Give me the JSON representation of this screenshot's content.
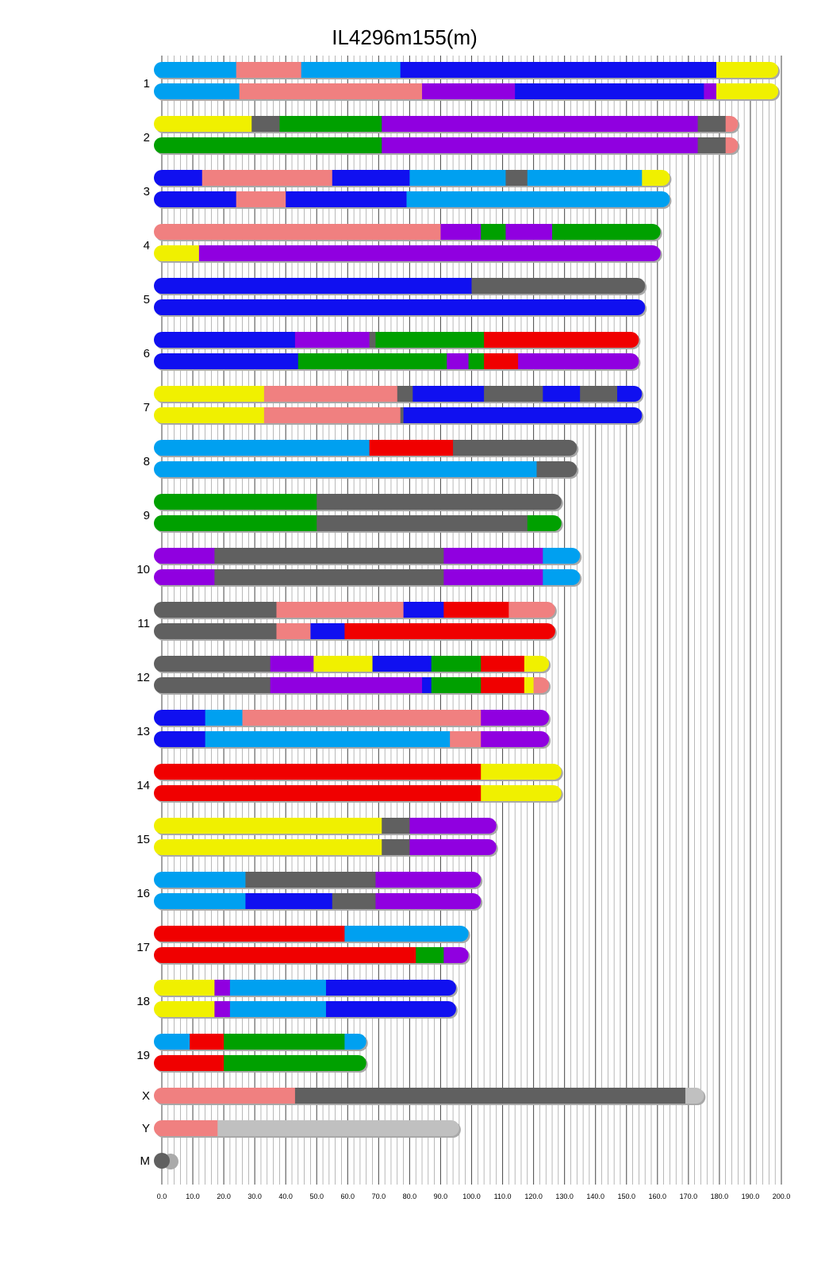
{
  "chart_data": {
    "type": "chromosome-ideogram",
    "title": "IL4296m155(m)",
    "xlim": [
      0,
      200
    ],
    "x_ticks": [
      "0.0",
      "10.0",
      "20.0",
      "30.0",
      "40.0",
      "50.0",
      "60.0",
      "70.0",
      "80.0",
      "90.0",
      "100.0",
      "110.0",
      "120.0",
      "130.0",
      "140.0",
      "150.0",
      "160.0",
      "170.0",
      "180.0",
      "190.0",
      "200.0"
    ],
    "palette": {
      "skyblue": "#00a0f0",
      "salmon": "#f08080",
      "blue": "#1010f0",
      "yellow": "#f0f000",
      "purple": "#9000e0",
      "green": "#00a000",
      "darkgray": "#606060",
      "red": "#f00000",
      "lightgray": "#c0c0c0"
    },
    "chromosomes": [
      {
        "label": "1",
        "length": 199,
        "tracks": [
          [
            [
              0,
              24,
              "skyblue"
            ],
            [
              24,
              45,
              "salmon"
            ],
            [
              45,
              77,
              "skyblue"
            ],
            [
              77,
              179,
              "blue"
            ],
            [
              179,
              199,
              "yellow"
            ]
          ],
          [
            [
              0,
              25,
              "skyblue"
            ],
            [
              25,
              84,
              "salmon"
            ],
            [
              84,
              114,
              "purple"
            ],
            [
              114,
              175,
              "blue"
            ],
            [
              175,
              179,
              "purple"
            ],
            [
              179,
              199,
              "yellow"
            ]
          ]
        ]
      },
      {
        "label": "2",
        "length": 186,
        "tracks": [
          [
            [
              0,
              29,
              "yellow"
            ],
            [
              29,
              38,
              "darkgray"
            ],
            [
              38,
              71,
              "green"
            ],
            [
              71,
              173,
              "purple"
            ],
            [
              173,
              182,
              "darkgray"
            ],
            [
              182,
              186,
              "salmon"
            ]
          ],
          [
            [
              0,
              71,
              "green"
            ],
            [
              71,
              173,
              "purple"
            ],
            [
              173,
              182,
              "darkgray"
            ],
            [
              182,
              186,
              "salmon"
            ]
          ]
        ]
      },
      {
        "label": "3",
        "length": 164,
        "tracks": [
          [
            [
              0,
              13,
              "blue"
            ],
            [
              13,
              55,
              "salmon"
            ],
            [
              55,
              80,
              "blue"
            ],
            [
              80,
              111,
              "skyblue"
            ],
            [
              111,
              118,
              "darkgray"
            ],
            [
              118,
              155,
              "skyblue"
            ],
            [
              155,
              164,
              "yellow"
            ]
          ],
          [
            [
              0,
              24,
              "blue"
            ],
            [
              24,
              40,
              "salmon"
            ],
            [
              40,
              79,
              "blue"
            ],
            [
              79,
              164,
              "skyblue"
            ]
          ]
        ]
      },
      {
        "label": "4",
        "length": 161,
        "tracks": [
          [
            [
              0,
              90,
              "salmon"
            ],
            [
              90,
              103,
              "purple"
            ],
            [
              103,
              111,
              "green"
            ],
            [
              111,
              126,
              "purple"
            ],
            [
              126,
              161,
              "green"
            ]
          ],
          [
            [
              0,
              12,
              "yellow"
            ],
            [
              12,
              161,
              "purple"
            ]
          ]
        ]
      },
      {
        "label": "5",
        "length": 156,
        "tracks": [
          [
            [
              0,
              100,
              "blue"
            ],
            [
              100,
              156,
              "darkgray"
            ]
          ],
          [
            [
              0,
              156,
              "blue"
            ]
          ]
        ]
      },
      {
        "label": "6",
        "length": 154,
        "tracks": [
          [
            [
              0,
              43,
              "blue"
            ],
            [
              43,
              67,
              "purple"
            ],
            [
              67,
              69,
              "darkgray"
            ],
            [
              69,
              104,
              "green"
            ],
            [
              104,
              154,
              "red"
            ]
          ],
          [
            [
              0,
              44,
              "blue"
            ],
            [
              44,
              92,
              "green"
            ],
            [
              92,
              99,
              "purple"
            ],
            [
              99,
              104,
              "green"
            ],
            [
              104,
              115,
              "red"
            ],
            [
              115,
              154,
              "purple"
            ]
          ]
        ]
      },
      {
        "label": "7",
        "length": 155,
        "tracks": [
          [
            [
              0,
              33,
              "yellow"
            ],
            [
              33,
              76,
              "salmon"
            ],
            [
              76,
              81,
              "darkgray"
            ],
            [
              81,
              104,
              "blue"
            ],
            [
              104,
              123,
              "darkgray"
            ],
            [
              123,
              135,
              "blue"
            ],
            [
              135,
              147,
              "darkgray"
            ],
            [
              147,
              155,
              "blue"
            ]
          ],
          [
            [
              0,
              33,
              "yellow"
            ],
            [
              33,
              77,
              "salmon"
            ],
            [
              77,
              78,
              "darkgray"
            ],
            [
              78,
              155,
              "blue"
            ]
          ]
        ]
      },
      {
        "label": "8",
        "length": 134,
        "tracks": [
          [
            [
              0,
              67,
              "skyblue"
            ],
            [
              67,
              94,
              "red"
            ],
            [
              94,
              134,
              "darkgray"
            ]
          ],
          [
            [
              0,
              121,
              "skyblue"
            ],
            [
              121,
              134,
              "darkgray"
            ]
          ]
        ]
      },
      {
        "label": "9",
        "length": 129,
        "tracks": [
          [
            [
              0,
              50,
              "green"
            ],
            [
              50,
              129,
              "darkgray"
            ]
          ],
          [
            [
              0,
              50,
              "green"
            ],
            [
              50,
              118,
              "darkgray"
            ],
            [
              118,
              129,
              "green"
            ]
          ]
        ]
      },
      {
        "label": "10",
        "length": 135,
        "tracks": [
          [
            [
              0,
              17,
              "purple"
            ],
            [
              17,
              91,
              "darkgray"
            ],
            [
              91,
              123,
              "purple"
            ],
            [
              123,
              135,
              "skyblue"
            ]
          ],
          [
            [
              0,
              17,
              "purple"
            ],
            [
              17,
              91,
              "darkgray"
            ],
            [
              91,
              123,
              "purple"
            ],
            [
              123,
              135,
              "skyblue"
            ]
          ]
        ]
      },
      {
        "label": "11",
        "length": 127,
        "tracks": [
          [
            [
              0,
              37,
              "darkgray"
            ],
            [
              37,
              78,
              "salmon"
            ],
            [
              78,
              91,
              "blue"
            ],
            [
              91,
              112,
              "red"
            ],
            [
              112,
              127,
              "salmon"
            ]
          ],
          [
            [
              0,
              37,
              "darkgray"
            ],
            [
              37,
              48,
              "salmon"
            ],
            [
              48,
              59,
              "blue"
            ],
            [
              59,
              127,
              "red"
            ]
          ]
        ]
      },
      {
        "label": "12",
        "length": 125,
        "tracks": [
          [
            [
              0,
              35,
              "darkgray"
            ],
            [
              35,
              49,
              "purple"
            ],
            [
              49,
              68,
              "yellow"
            ],
            [
              68,
              87,
              "blue"
            ],
            [
              87,
              103,
              "green"
            ],
            [
              103,
              117,
              "red"
            ],
            [
              117,
              125,
              "yellow"
            ]
          ],
          [
            [
              0,
              35,
              "darkgray"
            ],
            [
              35,
              84,
              "purple"
            ],
            [
              84,
              87,
              "blue"
            ],
            [
              87,
              103,
              "green"
            ],
            [
              103,
              117,
              "red"
            ],
            [
              117,
              120,
              "yellow"
            ],
            [
              120,
              125,
              "salmon"
            ]
          ]
        ]
      },
      {
        "label": "13",
        "length": 125,
        "tracks": [
          [
            [
              0,
              14,
              "blue"
            ],
            [
              14,
              26,
              "skyblue"
            ],
            [
              26,
              103,
              "salmon"
            ],
            [
              103,
              125,
              "purple"
            ]
          ],
          [
            [
              0,
              14,
              "blue"
            ],
            [
              14,
              93,
              "skyblue"
            ],
            [
              93,
              103,
              "salmon"
            ],
            [
              103,
              125,
              "purple"
            ]
          ]
        ]
      },
      {
        "label": "14",
        "length": 129,
        "tracks": [
          [
            [
              0,
              103,
              "red"
            ],
            [
              103,
              129,
              "yellow"
            ]
          ],
          [
            [
              0,
              103,
              "red"
            ],
            [
              103,
              129,
              "yellow"
            ]
          ]
        ]
      },
      {
        "label": "15",
        "length": 108,
        "tracks": [
          [
            [
              0,
              71,
              "yellow"
            ],
            [
              71,
              80,
              "darkgray"
            ],
            [
              80,
              108,
              "purple"
            ]
          ],
          [
            [
              0,
              71,
              "yellow"
            ],
            [
              71,
              80,
              "darkgray"
            ],
            [
              80,
              108,
              "purple"
            ]
          ]
        ]
      },
      {
        "label": "16",
        "length": 103,
        "tracks": [
          [
            [
              0,
              27,
              "skyblue"
            ],
            [
              27,
              69,
              "darkgray"
            ],
            [
              69,
              103,
              "purple"
            ]
          ],
          [
            [
              0,
              27,
              "skyblue"
            ],
            [
              27,
              55,
              "blue"
            ],
            [
              55,
              69,
              "darkgray"
            ],
            [
              69,
              103,
              "purple"
            ]
          ]
        ]
      },
      {
        "label": "17",
        "length": 99,
        "tracks": [
          [
            [
              0,
              59,
              "red"
            ],
            [
              59,
              99,
              "skyblue"
            ]
          ],
          [
            [
              0,
              82,
              "red"
            ],
            [
              82,
              91,
              "green"
            ],
            [
              91,
              99,
              "purple"
            ]
          ]
        ]
      },
      {
        "label": "18",
        "length": 95,
        "tracks": [
          [
            [
              0,
              17,
              "yellow"
            ],
            [
              17,
              22,
              "purple"
            ],
            [
              22,
              53,
              "skyblue"
            ],
            [
              53,
              95,
              "blue"
            ]
          ],
          [
            [
              0,
              17,
              "yellow"
            ],
            [
              17,
              22,
              "purple"
            ],
            [
              22,
              53,
              "skyblue"
            ],
            [
              53,
              95,
              "blue"
            ]
          ]
        ]
      },
      {
        "label": "19",
        "length": 66,
        "tracks": [
          [
            [
              0,
              9,
              "skyblue"
            ],
            [
              9,
              20,
              "red"
            ],
            [
              20,
              59,
              "green"
            ],
            [
              59,
              66,
              "skyblue"
            ]
          ],
          [
            [
              0,
              20,
              "red"
            ],
            [
              20,
              66,
              "green"
            ]
          ]
        ]
      },
      {
        "label": "X",
        "length": 175,
        "tracks": [
          [
            [
              0,
              43,
              "salmon"
            ],
            [
              43,
              169,
              "darkgray"
            ],
            [
              169,
              175,
              "lightgray"
            ]
          ]
        ]
      },
      {
        "label": "Y",
        "length": 96,
        "tracks": [
          [
            [
              0,
              18,
              "salmon"
            ],
            [
              18,
              96,
              "lightgray"
            ]
          ]
        ]
      },
      {
        "label": "M",
        "length": 0,
        "tracks": [
          [
            [
              0,
              0,
              "darkgray"
            ]
          ]
        ]
      }
    ]
  }
}
